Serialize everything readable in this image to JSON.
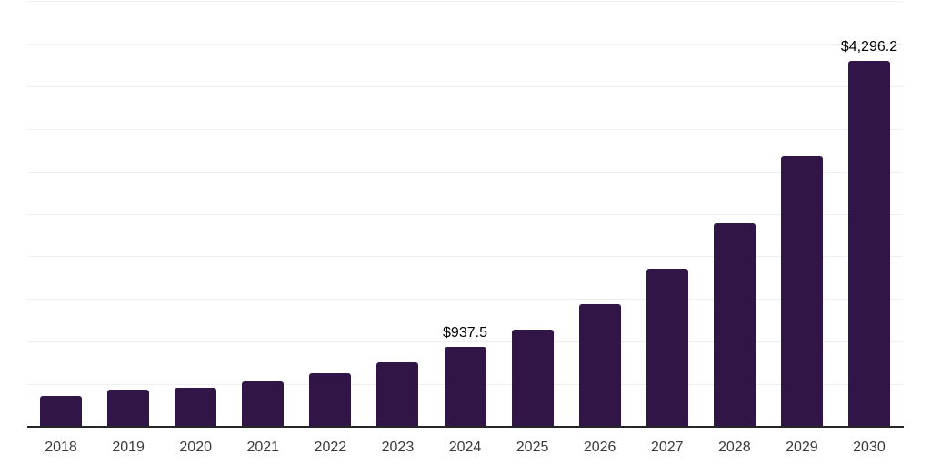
{
  "chart_data": {
    "type": "bar",
    "title": "",
    "xlabel": "",
    "ylabel": "",
    "categories": [
      "2018",
      "2019",
      "2020",
      "2021",
      "2022",
      "2023",
      "2024",
      "2025",
      "2026",
      "2027",
      "2028",
      "2029",
      "2030"
    ],
    "values": [
      362,
      433,
      454,
      536,
      634,
      762,
      937.5,
      1144,
      1435,
      1855,
      2393,
      3181,
      4296.2
    ],
    "value_labels": [
      "",
      "",
      "",
      "",
      "",
      "",
      "$937.5",
      "",
      "",
      "",
      "",
      "",
      "$4,296.2"
    ],
    "ylim": [
      0,
      5000
    ],
    "gridline_interval": 500,
    "grid": "horizontal-only",
    "legend": "none",
    "y_axis_tick_labels_visible": false,
    "colors": {
      "bar_fill": "#311547",
      "axis_line": "#262626",
      "gridline": "#eeeeee",
      "value_label_text": "#000000",
      "tick_label_text": "#3a3a3a",
      "background": "#ffffff"
    }
  }
}
